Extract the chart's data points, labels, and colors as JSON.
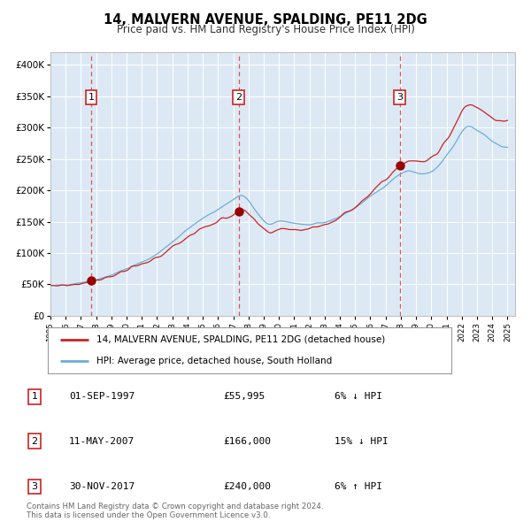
{
  "title": "14, MALVERN AVENUE, SPALDING, PE11 2DG",
  "subtitle": "Price paid vs. HM Land Registry's House Price Index (HPI)",
  "plot_bg_color": "#dce9f5",
  "hpi_line_color": "#6baed6",
  "price_line_color": "#cc2222",
  "marker_color": "#990000",
  "vline_color": "#dd4444",
  "sale_ts": [
    1997.67,
    2007.36,
    2017.92
  ],
  "sale_prices": [
    55995,
    166000,
    240000
  ],
  "ylim": [
    0,
    420000
  ],
  "yticks": [
    0,
    50000,
    100000,
    150000,
    200000,
    250000,
    300000,
    350000,
    400000
  ],
  "ytick_labels": [
    "£0",
    "£50K",
    "£100K",
    "£150K",
    "£200K",
    "£250K",
    "£300K",
    "£350K",
    "£400K"
  ],
  "legend_line1": "14, MALVERN AVENUE, SPALDING, PE11 2DG (detached house)",
  "legend_line2": "HPI: Average price, detached house, South Holland",
  "table_rows": [
    [
      "1",
      "01-SEP-1997",
      "£55,995",
      "6% ↓ HPI"
    ],
    [
      "2",
      "11-MAY-2007",
      "£166,000",
      "15% ↓ HPI"
    ],
    [
      "3",
      "30-NOV-2017",
      "£240,000",
      "6% ↑ HPI"
    ]
  ],
  "footnote": "Contains HM Land Registry data © Crown copyright and database right 2024.\nThis data is licensed under the Open Government Licence v3.0."
}
